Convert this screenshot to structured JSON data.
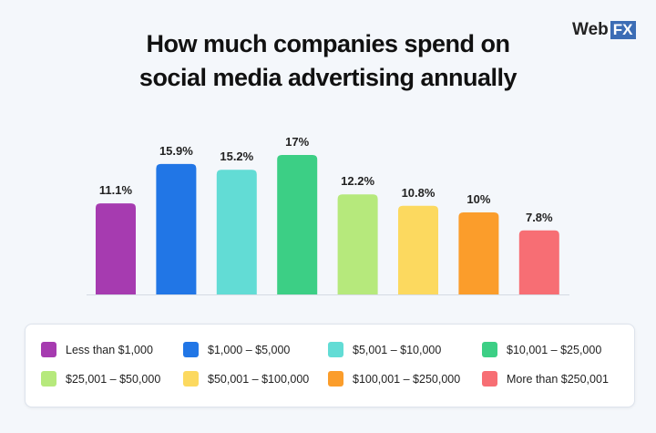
{
  "logo": {
    "text_a": "Web",
    "text_b": "FX"
  },
  "chart_data": {
    "type": "bar",
    "title_line1": "How much companies spend on",
    "title_line2": "social media advertising annually",
    "categories": [
      "Less than $1,000",
      "$1,000 – $5,000",
      "$5,001 – $10,000",
      "$10,001 – $25,000",
      "$25,001 – $50,000",
      "$50,001 – $100,000",
      "$100,001 – $250,000",
      "More than $250,001"
    ],
    "values": [
      11.1,
      15.9,
      15.2,
      17,
      12.2,
      10.8,
      10,
      7.8
    ],
    "labels": [
      "11.1%",
      "15.9%",
      "15.2%",
      "17%",
      "12.2%",
      "10.8%",
      "10%",
      "7.8%"
    ],
    "colors": [
      "#a63bb0",
      "#2176e6",
      "#62dcd5",
      "#3ccf85",
      "#b6e97c",
      "#fcd95f",
      "#fb9d2b",
      "#f76e74"
    ],
    "ylim": [
      0,
      17
    ],
    "legend": "bottom",
    "grid": false
  }
}
